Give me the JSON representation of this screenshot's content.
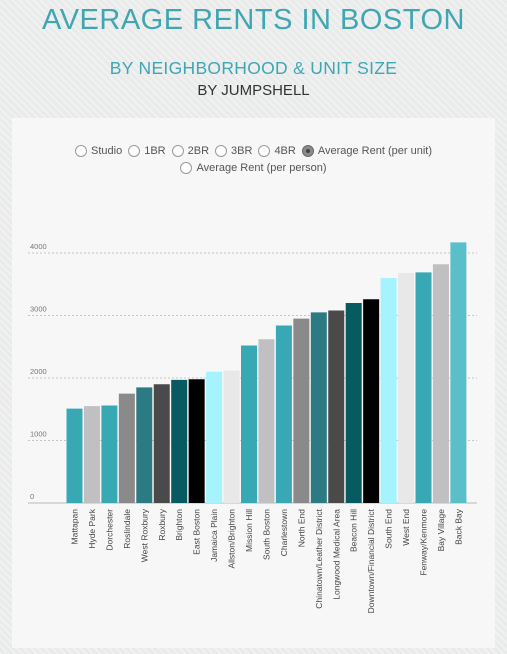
{
  "header": {
    "title": "AVERAGE RENTS IN BOSTON",
    "subtitle": "BY NEIGHBORHOOD & UNIT SIZE",
    "byline": "BY JUMPSHELL"
  },
  "controls": {
    "options": [
      "Studio",
      "1BR",
      "2BR",
      "3BR",
      "4BR",
      "Average Rent (per unit)",
      "Average Rent (per person)"
    ],
    "selected": "Average Rent (per unit)"
  },
  "chart_data": {
    "type": "bar",
    "title": "AVERAGE RENTS IN BOSTON",
    "subtitle": "BY NEIGHBORHOOD & UNIT SIZE",
    "xlabel": "",
    "ylabel": "",
    "ylim": [
      0,
      4200
    ],
    "yticks": [
      0,
      1000,
      2000,
      3000,
      4000
    ],
    "grid": true,
    "categories": [
      "Mattapan",
      "Hyde Park",
      "Dorchester",
      "Roslindale",
      "West Roxbury",
      "Roxbury",
      "Brighton",
      "East Boston",
      "Jamaica Plain",
      "Allston/Brighton",
      "Mission Hill",
      "South Boston",
      "Charlestown",
      "North End",
      "Chinatown/Leather District",
      "Longwood Medical Area",
      "Beacon Hill",
      "Downtown/Financial District",
      "South End",
      "West End",
      "Fenway/Kenmore",
      "Bay Village",
      "Back Bay"
    ],
    "values": [
      1510,
      1550,
      1560,
      1750,
      1850,
      1900,
      1970,
      1980,
      2100,
      2120,
      2520,
      2620,
      2840,
      2950,
      3050,
      3080,
      3200,
      3260,
      3600,
      3680,
      3690,
      3820,
      4170
    ],
    "colors": [
      "#37a8b4",
      "#c0c0c2",
      "#37a8b4",
      "#8a8a8a",
      "#2d7b82",
      "#4a4a4a",
      "#065a60",
      "#000000",
      "#a5f3fc",
      "#e8e8e8",
      "#37a8b4",
      "#c0c0c2",
      "#37a8b4",
      "#8a8a8a",
      "#2d7b82",
      "#4a4a4a",
      "#065a60",
      "#000000",
      "#a5f3fc",
      "#e8e8e8",
      "#37a8b4",
      "#c0c0c2",
      "#5abfc8"
    ]
  }
}
